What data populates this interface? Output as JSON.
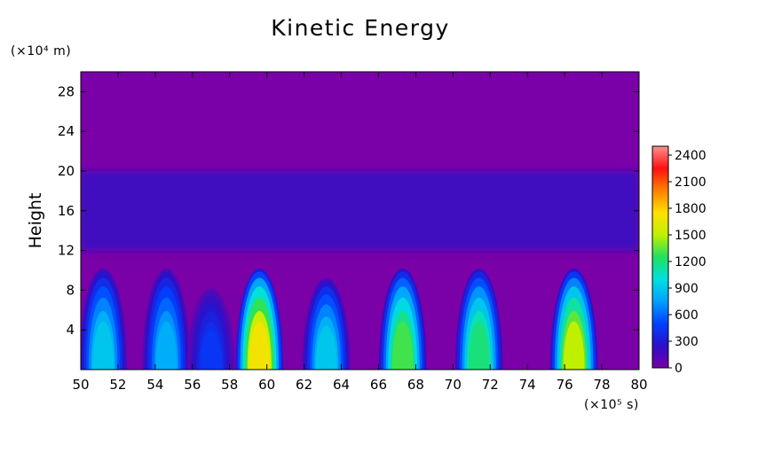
{
  "chart_data": {
    "type": "heatmap",
    "title": "Kinetic Energy",
    "ylabel": "Height",
    "y_unit_label": "(×10⁴ m)",
    "x_unit_label": "(×10⁵ s)",
    "xlim": [
      50,
      80
    ],
    "ylim": [
      0,
      30
    ],
    "x_ticks": [
      "50",
      "52",
      "54",
      "56",
      "58",
      "60",
      "62",
      "64",
      "66",
      "68",
      "70",
      "72",
      "74",
      "76",
      "78",
      "80"
    ],
    "y_ticks": [
      "4",
      "8",
      "12",
      "16",
      "20",
      "24",
      "28"
    ],
    "colorbar": {
      "range": [
        0,
        2500
      ],
      "ticks": [
        "0",
        "300",
        "600",
        "900",
        "1200",
        "1500",
        "1800",
        "2100",
        "2400"
      ]
    },
    "background_value": 60,
    "upper_band": {
      "y_bottom": 12,
      "y_top": 20,
      "value": 180
    },
    "bursts": [
      {
        "x_center": 51.2,
        "peak": 900,
        "top_height": 10
      },
      {
        "x_center": 54.6,
        "peak": 800,
        "top_height": 10
      },
      {
        "x_center": 57.0,
        "peak": 450,
        "top_height": 8
      },
      {
        "x_center": 59.6,
        "peak": 1700,
        "top_height": 10
      },
      {
        "x_center": 63.2,
        "peak": 900,
        "top_height": 9
      },
      {
        "x_center": 67.3,
        "peak": 1300,
        "top_height": 10
      },
      {
        "x_center": 71.4,
        "peak": 1200,
        "top_height": 10
      },
      {
        "x_center": 76.5,
        "peak": 1500,
        "top_height": 10
      }
    ]
  }
}
